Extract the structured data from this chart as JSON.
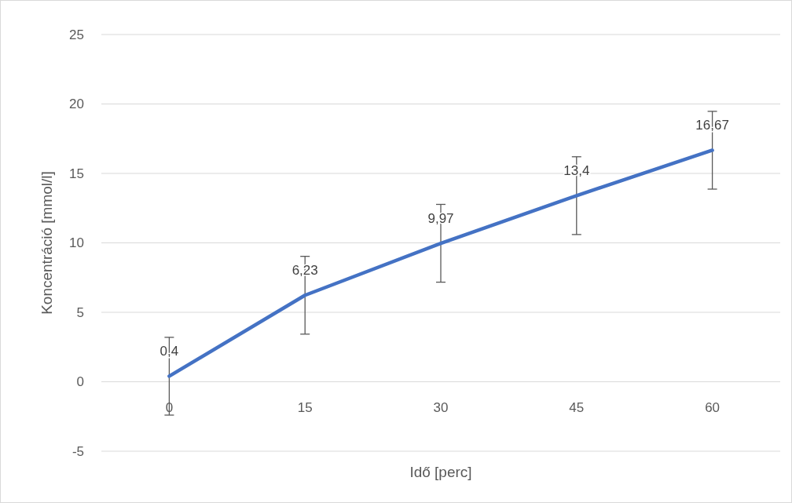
{
  "chart_data": {
    "type": "line",
    "xlabel": "Idő [perc]",
    "ylabel": "Koncentráció [mmol/l]",
    "categories": [
      "0",
      "15",
      "30",
      "45",
      "60"
    ],
    "series": [
      {
        "color": "#4472c4",
        "values": [
          0.4,
          6.23,
          9.97,
          13.4,
          16.67
        ],
        "errors": [
          2.8,
          2.8,
          2.8,
          2.8,
          2.8
        ],
        "value_labels": [
          "0,4",
          "6,23",
          "9,97",
          "13,4",
          "16,67"
        ]
      }
    ],
    "ylim": [
      -5,
      25
    ],
    "yticks": [
      -5,
      0,
      5,
      10,
      15,
      20,
      25
    ],
    "grid": "y",
    "marker": "none",
    "line_style": "solid"
  }
}
